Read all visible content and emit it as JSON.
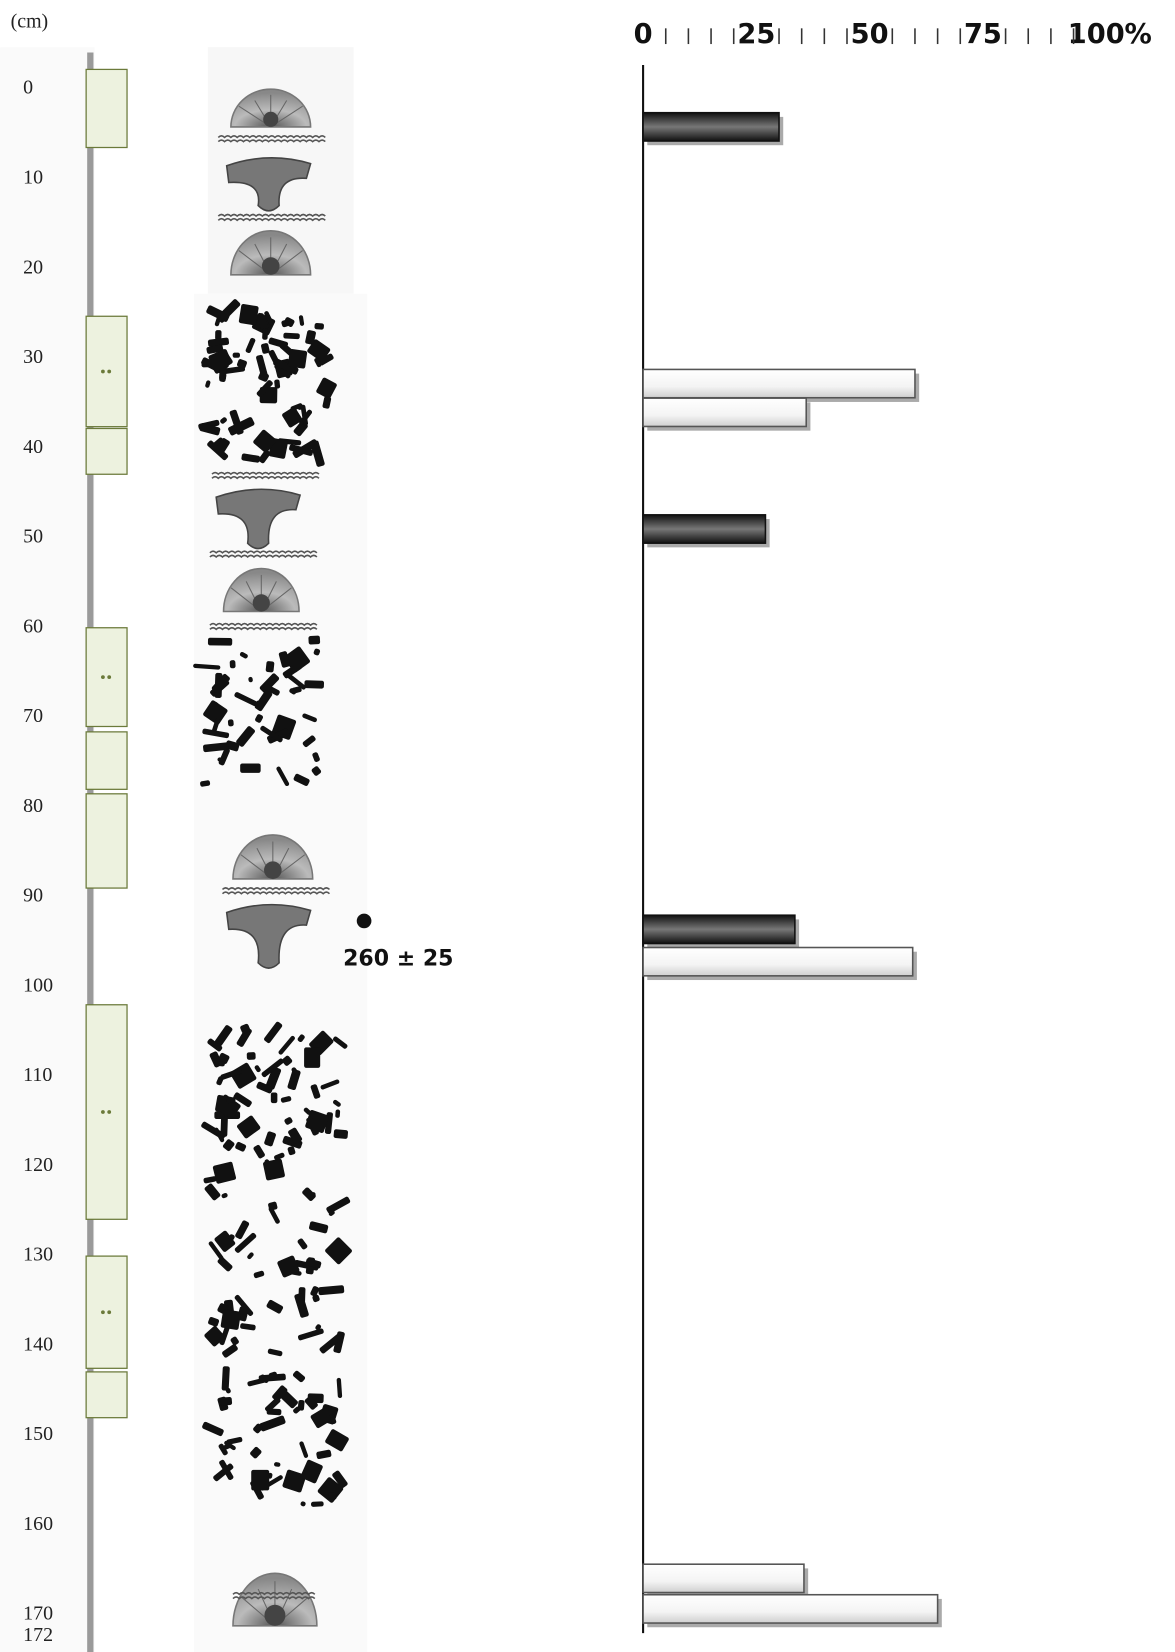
{
  "chart_data": {
    "type": "bar",
    "ylabel": "(cm)",
    "ylim": [
      0,
      172
    ],
    "yticks": [
      0,
      10,
      20,
      30,
      40,
      50,
      60,
      70,
      80,
      90,
      100,
      110,
      120,
      130,
      140,
      150,
      160,
      170,
      172
    ],
    "xlim": [
      0,
      100
    ],
    "xticks": [
      0,
      25,
      50,
      75,
      100
    ],
    "xminorticks": [
      5,
      10,
      15,
      20,
      30,
      35,
      40,
      45,
      55,
      60,
      65,
      70,
      80,
      85,
      90,
      95
    ],
    "xunit": "%",
    "series": [
      {
        "color": "#222222",
        "depth": [
          4.2,
          49,
          93.6
        ],
        "values": [
          30,
          27,
          33.5
        ]
      },
      {
        "color": "#f2f2f2",
        "depth": [
          32.8,
          36,
          97.2,
          165.9,
          169.3
        ],
        "values": [
          60,
          36,
          59.5,
          35.5,
          65
        ]
      }
    ],
    "samples": [
      {
        "top": -2.2,
        "bottom": 6.5,
        "dots": false
      },
      {
        "top": 25.3,
        "bottom": 37.6,
        "dots": true
      },
      {
        "top": 37.8,
        "bottom": 42.9,
        "dots": false
      },
      {
        "top": 60,
        "bottom": 71,
        "dots": true
      },
      {
        "top": 71.6,
        "bottom": 78,
        "dots": false
      },
      {
        "top": 78.5,
        "bottom": 89,
        "dots": false
      },
      {
        "top": 102,
        "bottom": 125.9,
        "dots": true
      },
      {
        "top": 130,
        "bottom": 142.5,
        "dots": true
      },
      {
        "top": 142.9,
        "bottom": 148,
        "dots": false
      }
    ],
    "annotation": "260 ± 25"
  }
}
